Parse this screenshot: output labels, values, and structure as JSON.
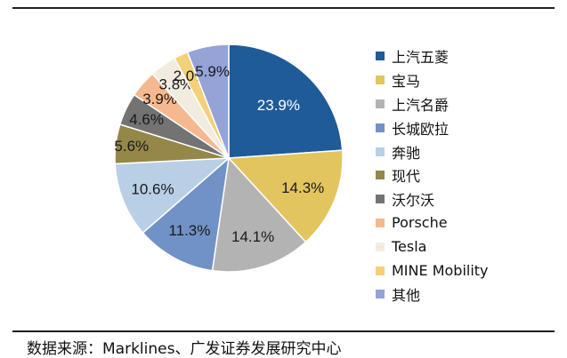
{
  "chart_data": {
    "type": "pie",
    "title": "",
    "start_angle_deg": 0,
    "direction": "clockwise",
    "legend_position": "right",
    "slices": [
      {
        "label": "上汽五菱",
        "value": 23.9,
        "display": "23.9%",
        "color": "#1f5b99",
        "label_color": "#ffffff"
      },
      {
        "label": "宝马",
        "value": 14.3,
        "display": "14.3%",
        "color": "#e3c55f",
        "label_color": "#1a1a1a"
      },
      {
        "label": "上汽名爵",
        "value": 14.1,
        "display": "14.1%",
        "color": "#b3b3b3",
        "label_color": "#1a1a1a"
      },
      {
        "label": "长城欧拉",
        "value": 11.3,
        "display": "11.3%",
        "color": "#7192c7",
        "label_color": "#1a1a1a"
      },
      {
        "label": "奔驰",
        "value": 10.6,
        "display": "10.6%",
        "color": "#b9cfe6",
        "label_color": "#1a1a1a"
      },
      {
        "label": "现代",
        "value": 5.6,
        "display": "5.6%",
        "color": "#958748",
        "label_color": "#1a1a1a"
      },
      {
        "label": "沃尔沃",
        "value": 4.6,
        "display": "4.6%",
        "color": "#737373",
        "label_color": "#1a1a1a"
      },
      {
        "label": "Porsche",
        "value": 3.9,
        "display": "3.9%",
        "color": "#f6b88e",
        "label_color": "#1a1a1a"
      },
      {
        "label": "Tesla",
        "value": 3.8,
        "display": "3.8%",
        "color": "#f2ece0",
        "label_color": "#1a1a1a"
      },
      {
        "label": "MINE Mobility",
        "value": 2.0,
        "display": "2.0%",
        "color": "#f4d07a",
        "label_color": "#1a1a1a"
      },
      {
        "label": "其他",
        "value": 5.9,
        "display": "5.9%",
        "color": "#95a3d7",
        "label_color": "#1a1a1a"
      }
    ]
  },
  "source": "数据来源：Marklines、广发证券发展研究中心"
}
